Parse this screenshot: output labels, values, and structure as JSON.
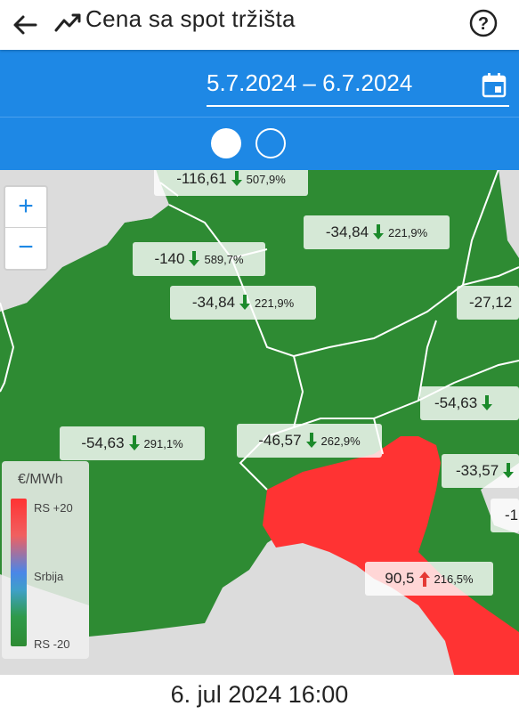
{
  "header": {
    "title": "Cena sa spot tržišta"
  },
  "date_range": {
    "value": "5.7.2024 – 6.7.2024"
  },
  "map": {
    "zoom_in": "+",
    "zoom_out": "−",
    "labels": [
      {
        "value": "-116,61",
        "pct": "507,9%",
        "dir": "down"
      },
      {
        "value": "-34,84",
        "pct": "221,9%",
        "dir": "down"
      },
      {
        "value": "-140",
        "pct": "589,7%",
        "dir": "down"
      },
      {
        "value": "-34,84",
        "pct": "221,9%",
        "dir": "down"
      },
      {
        "value": "-27,12",
        "pct": "",
        "dir": "none"
      },
      {
        "value": "-54,63",
        "pct": "",
        "dir": "down"
      },
      {
        "value": "-54,63",
        "pct": "291,1%",
        "dir": "down"
      },
      {
        "value": "-46,57",
        "pct": "262,9%",
        "dir": "down"
      },
      {
        "value": "-33,57",
        "pct": "",
        "dir": "down"
      },
      {
        "value": "-1",
        "pct": "",
        "dir": "none"
      },
      {
        "value": "90,5",
        "pct": "216,5%",
        "dir": "up"
      }
    ],
    "legend": {
      "title": "€/MWh",
      "top": "RS +20",
      "mid": "Srbija",
      "bottom": "RS -20"
    }
  },
  "footer": {
    "timestamp": "6. jul 2024 16:00"
  },
  "colors": {
    "primary": "#1e88e5",
    "green": "#2e8b33",
    "red": "#ff3333",
    "up_arrow": "#e53935",
    "down_arrow": "#1b8a2b"
  }
}
